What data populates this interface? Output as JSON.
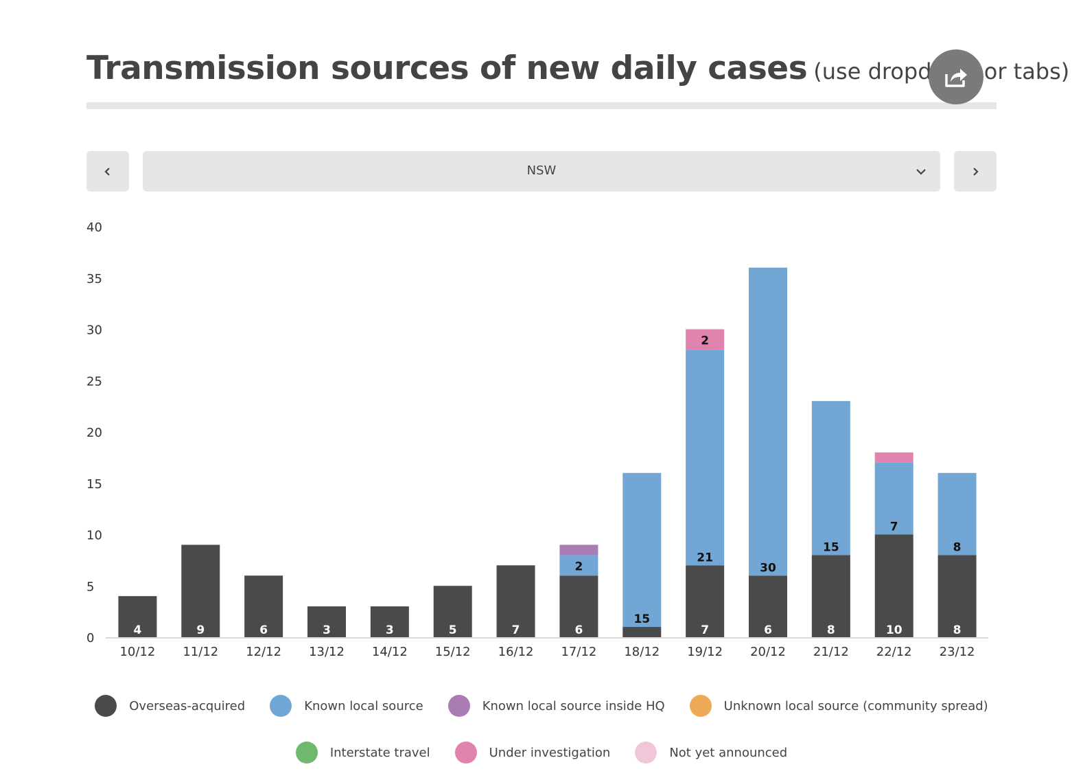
{
  "header": {
    "title": "Transmission sources of new daily cases",
    "subtitle": "(use dropdown or tabs)",
    "share_icon": "share-icon"
  },
  "controls": {
    "prev_icon": "chevron-left-icon",
    "next_icon": "chevron-right-icon",
    "selected_region": "NSW",
    "dropdown_icon": "chevron-down-icon"
  },
  "chart_data": {
    "type": "bar",
    "stacked": true,
    "categories": [
      "10/12",
      "11/12",
      "12/12",
      "13/12",
      "14/12",
      "15/12",
      "16/12",
      "17/12",
      "18/12",
      "19/12",
      "20/12",
      "21/12",
      "22/12",
      "23/12"
    ],
    "ylim": [
      0,
      40
    ],
    "yticks": [
      0,
      5,
      10,
      15,
      20,
      25,
      30,
      35,
      40
    ],
    "grid": false,
    "legend_position": "bottom",
    "series": [
      {
        "name": "Overseas-acquired",
        "color": "#4a4a4a",
        "label_color": "#ffffff",
        "values": [
          4,
          9,
          6,
          3,
          3,
          5,
          7,
          6,
          1,
          7,
          6,
          8,
          10,
          8
        ],
        "labels": [
          "4",
          "9",
          "6",
          "3",
          "3",
          "5",
          "7",
          "6",
          "",
          "7",
          "6",
          "8",
          "10",
          "8"
        ]
      },
      {
        "name": "Known local source",
        "color": "#72a6d4",
        "label_color": "#111111",
        "values": [
          0,
          0,
          0,
          0,
          0,
          0,
          0,
          2,
          15,
          21,
          30,
          15,
          7,
          8
        ],
        "labels": [
          "",
          "",
          "",
          "",
          "",
          "",
          "",
          "2",
          "15",
          "21",
          "30",
          "15",
          "7",
          "8"
        ]
      },
      {
        "name": "Known local source inside HQ",
        "color": "#a97db3",
        "label_color": "#111111",
        "values": [
          0,
          0,
          0,
          0,
          0,
          0,
          0,
          1,
          0,
          0,
          0,
          0,
          0,
          0
        ],
        "labels": [
          "",
          "",
          "",
          "",
          "",
          "",
          "",
          "",
          "",
          "",
          "",
          "",
          "",
          ""
        ]
      },
      {
        "name": "Unknown local source (community spread)",
        "color": "#eea957",
        "label_color": "#111111",
        "values": [
          0,
          0,
          0,
          0,
          0,
          0,
          0,
          0,
          0,
          0,
          0,
          0,
          0,
          0
        ],
        "labels": [
          "",
          "",
          "",
          "",
          "",
          "",
          "",
          "",
          "",
          "",
          "",
          "",
          "",
          ""
        ]
      },
      {
        "name": "Interstate travel",
        "color": "#6fb96f",
        "label_color": "#111111",
        "values": [
          0,
          0,
          0,
          0,
          0,
          0,
          0,
          0,
          0,
          0,
          0,
          0,
          0,
          0
        ],
        "labels": [
          "",
          "",
          "",
          "",
          "",
          "",
          "",
          "",
          "",
          "",
          "",
          "",
          "",
          ""
        ]
      },
      {
        "name": "Under investigation",
        "color": "#e184ad",
        "label_color": "#111111",
        "values": [
          0,
          0,
          0,
          0,
          0,
          0,
          0,
          0,
          0,
          2,
          0,
          0,
          1,
          0
        ],
        "labels": [
          "",
          "",
          "",
          "",
          "",
          "",
          "",
          "",
          "",
          "2",
          "",
          "",
          "",
          ""
        ]
      },
      {
        "name": "Not yet announced",
        "color": "#f0c6d8",
        "label_color": "#111111",
        "values": [
          0,
          0,
          0,
          0,
          0,
          0,
          0,
          0,
          0,
          0,
          0,
          0,
          0,
          0
        ],
        "labels": [
          "",
          "",
          "",
          "",
          "",
          "",
          "",
          "",
          "",
          "",
          "",
          "",
          "",
          ""
        ]
      }
    ]
  }
}
